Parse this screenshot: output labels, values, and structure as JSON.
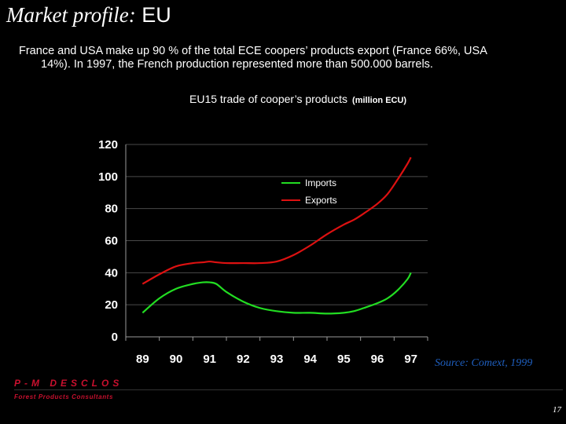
{
  "slide": {
    "title_italic": "Market profile:",
    "title_sans": "EU",
    "intro_line1": "France and USA make up 90 % of the total ECE coopers’ products export (France 66%, USA",
    "intro_line2": "14%). In 1997, the French production represented more than 500.000 barrels.",
    "source": "Source: Comext, 1999",
    "brand": "P-M DESCLOS",
    "brand_sub": "Forest Products Consultants",
    "page_number": "17"
  },
  "chart_data": {
    "type": "line",
    "title": "EU15 trade of cooper’s products",
    "unit": "(million ECU)",
    "categories": [
      "89",
      "90",
      "91",
      "92",
      "93",
      "94",
      "95",
      "96",
      "97"
    ],
    "x": [
      89,
      89.5,
      90,
      90.5,
      90.8,
      91,
      91.2,
      91.5,
      92,
      92.5,
      93,
      93.5,
      94,
      94.5,
      95,
      95.3,
      95.6,
      96,
      96.3,
      96.6,
      96.9,
      97
    ],
    "ylim": [
      0,
      120
    ],
    "yticks": [
      0,
      20,
      40,
      60,
      80,
      100,
      120
    ],
    "grid": true,
    "legend_position": "top-center",
    "series": [
      {
        "name": "Imports",
        "color": "#22dd22",
        "values": [
          15,
          24,
          30,
          33,
          34,
          34,
          33,
          28,
          22,
          18,
          16,
          15,
          15,
          14.5,
          15,
          16,
          18,
          21,
          24,
          29,
          36,
          40
        ]
      },
      {
        "name": "Exports",
        "color": "#dd1111",
        "values": [
          33,
          39,
          44,
          46,
          46.5,
          47,
          46.5,
          46,
          46,
          46,
          47,
          51,
          57,
          64,
          70,
          73,
          77,
          83,
          89,
          98,
          108,
          112
        ]
      }
    ]
  }
}
